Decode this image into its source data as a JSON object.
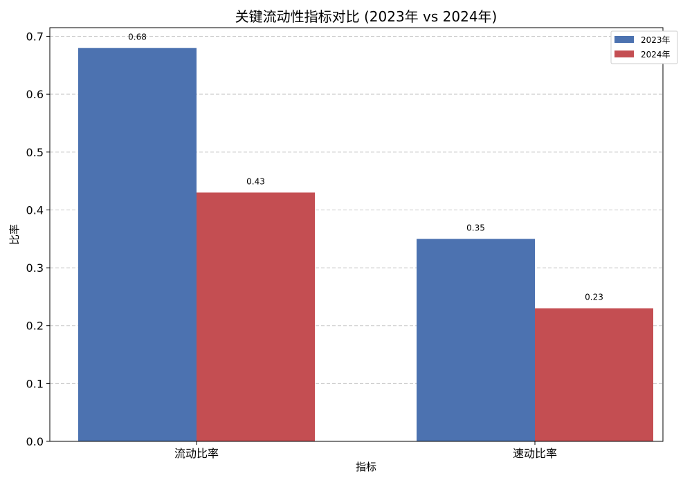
{
  "chart_data": {
    "type": "bar",
    "title": "关键流动性指标对比 (2023年 vs 2024年)",
    "xlabel": "指标",
    "ylabel": "比率",
    "categories": [
      "流动比率",
      "速动比率"
    ],
    "series": [
      {
        "name": "2023年",
        "values": [
          0.68,
          0.35
        ],
        "color": "#4c72b0"
      },
      {
        "name": "2024年",
        "values": [
          0.43,
          0.23
        ],
        "color": "#c44e52"
      }
    ],
    "ylim": [
      0,
      0.715
    ],
    "yticks": [
      0.0,
      0.1,
      0.2,
      0.3,
      0.4,
      0.5,
      0.6,
      0.7
    ],
    "ytick_labels": [
      "0.0",
      "0.1",
      "0.2",
      "0.3",
      "0.4",
      "0.5",
      "0.6",
      "0.7"
    ],
    "data_labels": [
      [
        "0.68",
        "0.35"
      ],
      [
        "0.43",
        "0.23"
      ]
    ],
    "grid": "y-dashed",
    "legend_position": "top-right"
  }
}
